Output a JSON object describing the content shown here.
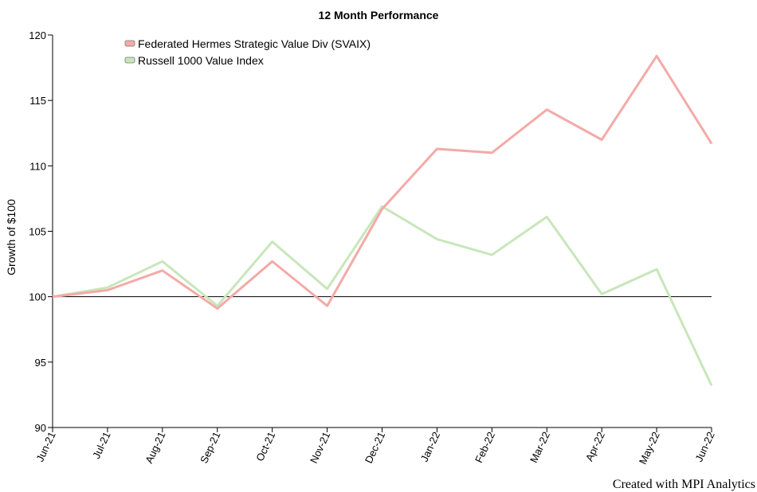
{
  "chart_data": {
    "type": "line",
    "title": "12 Month Performance",
    "xlabel": "",
    "ylabel": "Growth of $100",
    "categories": [
      "Jun-21",
      "Jul-21",
      "Aug-21",
      "Sep-21",
      "Oct-21",
      "Nov-21",
      "Dec-21",
      "Jan-22",
      "Feb-22",
      "Mar-22",
      "Apr-22",
      "May-22",
      "Jun-22"
    ],
    "ylim": [
      90,
      120
    ],
    "yticks": [
      90,
      95,
      100,
      105,
      110,
      115,
      120
    ],
    "reference_line": 100,
    "grid": false,
    "legend_position": "top-left",
    "series": [
      {
        "name": "Federated Hermes Strategic Value Div (SVAIX)",
        "color": "#f4aaa7",
        "values": [
          100,
          100.5,
          102.0,
          99.1,
          102.7,
          99.3,
          106.7,
          111.3,
          111.0,
          114.3,
          112.0,
          118.4,
          111.7
        ]
      },
      {
        "name": "Russell 1000 Value Index",
        "color": "#c8e6bb",
        "values": [
          100,
          100.7,
          102.7,
          99.3,
          104.2,
          100.6,
          106.9,
          104.4,
          103.2,
          106.1,
          100.2,
          102.1,
          93.2
        ]
      }
    ]
  },
  "footer": {
    "credit": "Created with MPI Analytics"
  }
}
